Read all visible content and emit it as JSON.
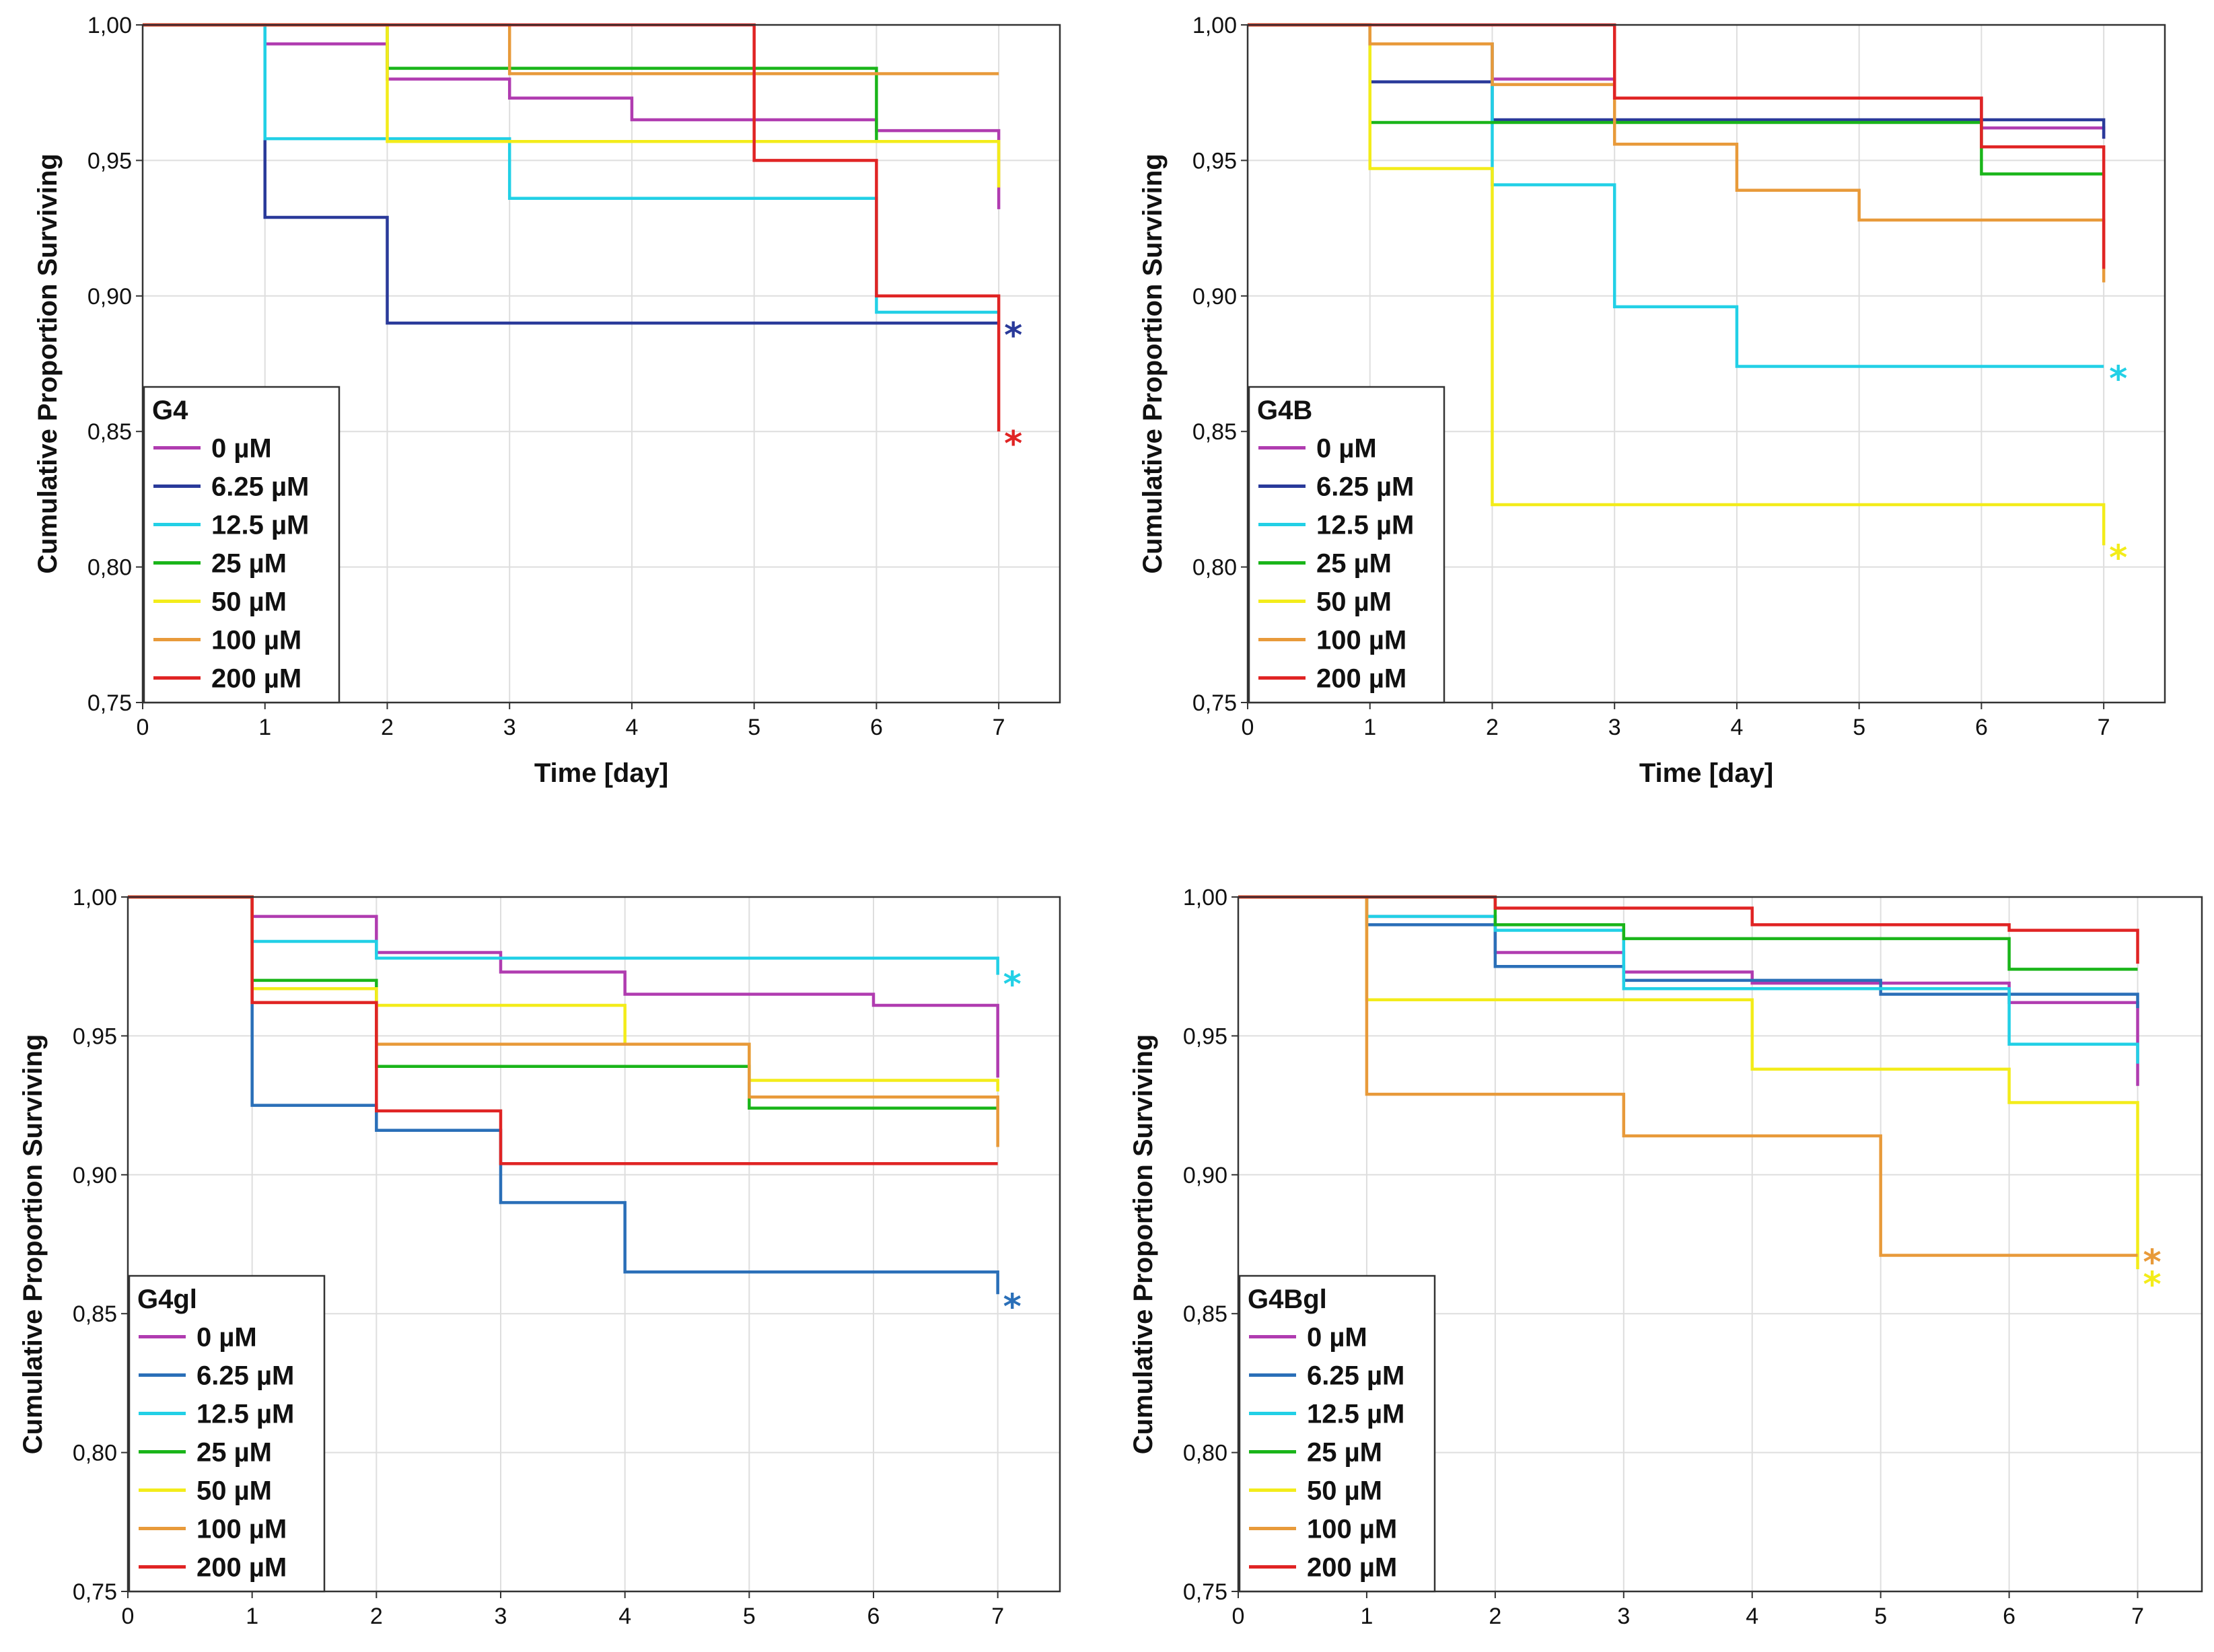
{
  "chart_data": [
    {
      "type": "line",
      "title": "G4",
      "xlabel": "Time [day]",
      "ylabel": "Cumulative Proportion Surviving",
      "xlim": [
        0,
        7.5
      ],
      "ylim": [
        0.75,
        1.0
      ],
      "xticks": [
        "0",
        "1",
        "2",
        "3",
        "4",
        "5",
        "6",
        "7"
      ],
      "yticks": [
        "0,75",
        "0,80",
        "0,85",
        "0,90",
        "0,95",
        "1,00"
      ],
      "grid": true,
      "legend_position": "bottom-left",
      "series": [
        {
          "name": "0 µM",
          "color": "#b03cb0",
          "x": [
            0,
            1,
            2,
            3,
            4,
            6,
            7
          ],
          "y": [
            1.0,
            0.993,
            0.98,
            0.973,
            0.965,
            0.961,
            0.932
          ]
        },
        {
          "name": "6.25 µM",
          "color": "#2a3a9a",
          "x": [
            0,
            1,
            2,
            7
          ],
          "y": [
            1.0,
            0.929,
            0.89,
            0.89
          ]
        },
        {
          "name": "12.5 µM",
          "color": "#22d0e6",
          "x": [
            0,
            1,
            3,
            6,
            7
          ],
          "y": [
            1.0,
            0.958,
            0.936,
            0.894,
            0.894
          ]
        },
        {
          "name": "25 µM",
          "color": "#1ab51a",
          "x": [
            0,
            2,
            6,
            7
          ],
          "y": [
            1.0,
            0.984,
            0.957,
            0.957
          ]
        },
        {
          "name": "50 µM",
          "color": "#f3ec1a",
          "x": [
            0,
            2,
            7
          ],
          "y": [
            1.0,
            0.957,
            0.94
          ]
        },
        {
          "name": "100 µM",
          "color": "#e89a3a",
          "x": [
            0,
            3,
            7
          ],
          "y": [
            1.0,
            0.982,
            0.982
          ]
        },
        {
          "name": "200 µM",
          "color": "#e02424",
          "x": [
            0,
            5,
            6,
            7
          ],
          "y": [
            1.0,
            0.95,
            0.9,
            0.85
          ]
        }
      ],
      "annotations": [
        {
          "text": "*",
          "series": "6.25 µM",
          "y": 0.889
        },
        {
          "text": "*",
          "series": "200 µM",
          "y": 0.849
        }
      ]
    },
    {
      "type": "line",
      "title": "G4B",
      "xlabel": "Time [day]",
      "ylabel": "Cumulative Proportion Surviving",
      "xlim": [
        0,
        7.5
      ],
      "ylim": [
        0.75,
        1.0
      ],
      "xticks": [
        "0",
        "1",
        "2",
        "3",
        "4",
        "5",
        "6",
        "7"
      ],
      "yticks": [
        "0,75",
        "0,80",
        "0,85",
        "0,90",
        "0,95",
        "1,00"
      ],
      "grid": true,
      "legend_position": "bottom-left",
      "series": [
        {
          "name": "0 µM",
          "color": "#b03cb0",
          "x": [
            0,
            1,
            2,
            3,
            6,
            7
          ],
          "y": [
            1.0,
            0.993,
            0.98,
            0.973,
            0.962,
            0.958
          ]
        },
        {
          "name": "6.25 µM",
          "color": "#2a3a9a",
          "x": [
            0,
            1,
            2,
            7
          ],
          "y": [
            1.0,
            0.979,
            0.965,
            0.958
          ]
        },
        {
          "name": "12.5 µM",
          "color": "#22d0e6",
          "x": [
            0,
            1,
            2,
            3,
            4,
            7
          ],
          "y": [
            1.0,
            0.993,
            0.941,
            0.896,
            0.874,
            0.874
          ]
        },
        {
          "name": "25 µM",
          "color": "#1ab51a",
          "x": [
            0,
            1,
            6,
            7
          ],
          "y": [
            1.0,
            0.964,
            0.945,
            0.945
          ]
        },
        {
          "name": "50 µM",
          "color": "#f3ec1a",
          "x": [
            0,
            1,
            2,
            7
          ],
          "y": [
            1.0,
            0.947,
            0.823,
            0.808
          ]
        },
        {
          "name": "100 µM",
          "color": "#e89a3a",
          "x": [
            0,
            1,
            2,
            3,
            4,
            5,
            7
          ],
          "y": [
            1.0,
            0.993,
            0.978,
            0.956,
            0.939,
            0.928,
            0.905
          ]
        },
        {
          "name": "200 µM",
          "color": "#e02424",
          "x": [
            0,
            3,
            6,
            7
          ],
          "y": [
            1.0,
            0.973,
            0.955,
            0.91
          ]
        }
      ],
      "annotations": [
        {
          "text": "*",
          "series": "12.5 µM",
          "y": 0.873
        },
        {
          "text": "*",
          "series": "50 µM",
          "y": 0.807
        }
      ]
    },
    {
      "type": "line",
      "title": "G4gl",
      "xlabel": "",
      "ylabel": "Cumulative Proportion Surviving",
      "xlim": [
        0,
        7.5
      ],
      "ylim": [
        0.75,
        1.0
      ],
      "xticks": [
        "0",
        "1",
        "2",
        "3",
        "4",
        "5",
        "6",
        "7"
      ],
      "yticks": [
        "0,75",
        "0,80",
        "0,85",
        "0,90",
        "0,95",
        "1,00"
      ],
      "grid": true,
      "legend_position": "bottom-left",
      "series": [
        {
          "name": "0 µM",
          "color": "#b03cb0",
          "x": [
            0,
            1,
            2,
            3,
            4,
            6,
            7
          ],
          "y": [
            1.0,
            0.993,
            0.98,
            0.973,
            0.965,
            0.961,
            0.935
          ]
        },
        {
          "name": "6.25 µM",
          "color": "#2a6fb8",
          "x": [
            0,
            1,
            2,
            3,
            4,
            7
          ],
          "y": [
            1.0,
            0.925,
            0.916,
            0.89,
            0.865,
            0.857
          ]
        },
        {
          "name": "12.5 µM",
          "color": "#22d0e6",
          "x": [
            0,
            1,
            2,
            7
          ],
          "y": [
            1.0,
            0.984,
            0.978,
            0.972
          ]
        },
        {
          "name": "25 µM",
          "color": "#1ab51a",
          "x": [
            0,
            1,
            2,
            5,
            7
          ],
          "y": [
            1.0,
            0.97,
            0.939,
            0.924,
            0.924
          ]
        },
        {
          "name": "50 µM",
          "color": "#f3ec1a",
          "x": [
            0,
            1,
            2,
            4,
            5,
            7
          ],
          "y": [
            1.0,
            0.967,
            0.961,
            0.947,
            0.934,
            0.93
          ]
        },
        {
          "name": "100 µM",
          "color": "#e89a3a",
          "x": [
            0,
            1,
            2,
            5,
            7
          ],
          "y": [
            1.0,
            0.962,
            0.947,
            0.928,
            0.91
          ]
        },
        {
          "name": "200 µM",
          "color": "#e02424",
          "x": [
            0,
            1,
            2,
            3,
            7
          ],
          "y": [
            1.0,
            0.962,
            0.923,
            0.904,
            0.904
          ]
        }
      ],
      "annotations": [
        {
          "text": "*",
          "series": "12.5 µM",
          "y": 0.972
        },
        {
          "text": "*",
          "series": "6.25 µM",
          "y": 0.856
        }
      ]
    },
    {
      "type": "line",
      "title": "G4Bgl",
      "xlabel": "",
      "ylabel": "Cumulative Proportion Surviving",
      "xlim": [
        0,
        7.5
      ],
      "ylim": [
        0.75,
        1.0
      ],
      "xticks": [
        "0",
        "1",
        "2",
        "3",
        "4",
        "5",
        "6",
        "7"
      ],
      "yticks": [
        "0,75",
        "0,80",
        "0,85",
        "0,90",
        "0,95",
        "1,00"
      ],
      "grid": true,
      "legend_position": "bottom-left",
      "series": [
        {
          "name": "0 µM",
          "color": "#b03cb0",
          "x": [
            0,
            1,
            2,
            3,
            4,
            6,
            7
          ],
          "y": [
            1.0,
            0.993,
            0.98,
            0.973,
            0.969,
            0.962,
            0.932
          ]
        },
        {
          "name": "6.25 µM",
          "color": "#2a6fb8",
          "x": [
            0,
            1,
            2,
            3,
            5,
            7
          ],
          "y": [
            1.0,
            0.99,
            0.975,
            0.97,
            0.965,
            0.96
          ]
        },
        {
          "name": "12.5 µM",
          "color": "#22d0e6",
          "x": [
            0,
            1,
            2,
            3,
            6,
            7
          ],
          "y": [
            1.0,
            0.993,
            0.988,
            0.967,
            0.947,
            0.94
          ]
        },
        {
          "name": "25 µM",
          "color": "#1ab51a",
          "x": [
            0,
            2,
            3,
            6,
            7
          ],
          "y": [
            1.0,
            0.99,
            0.985,
            0.974,
            0.974
          ]
        },
        {
          "name": "50 µM",
          "color": "#f3ec1a",
          "x": [
            0,
            1,
            4,
            6,
            7
          ],
          "y": [
            1.0,
            0.963,
            0.938,
            0.926,
            0.866
          ]
        },
        {
          "name": "100 µM",
          "color": "#e89a3a",
          "x": [
            0,
            1,
            3,
            5,
            7
          ],
          "y": [
            1.0,
            0.929,
            0.914,
            0.871,
            0.871
          ]
        },
        {
          "name": "200 µM",
          "color": "#e02424",
          "x": [
            0,
            2,
            4,
            6,
            7
          ],
          "y": [
            1.0,
            0.996,
            0.99,
            0.988,
            0.976
          ]
        }
      ],
      "annotations": [
        {
          "text": "*",
          "series": "100 µM",
          "y": 0.872
        },
        {
          "text": "*",
          "series": "50 µM",
          "y": 0.864
        }
      ]
    }
  ]
}
